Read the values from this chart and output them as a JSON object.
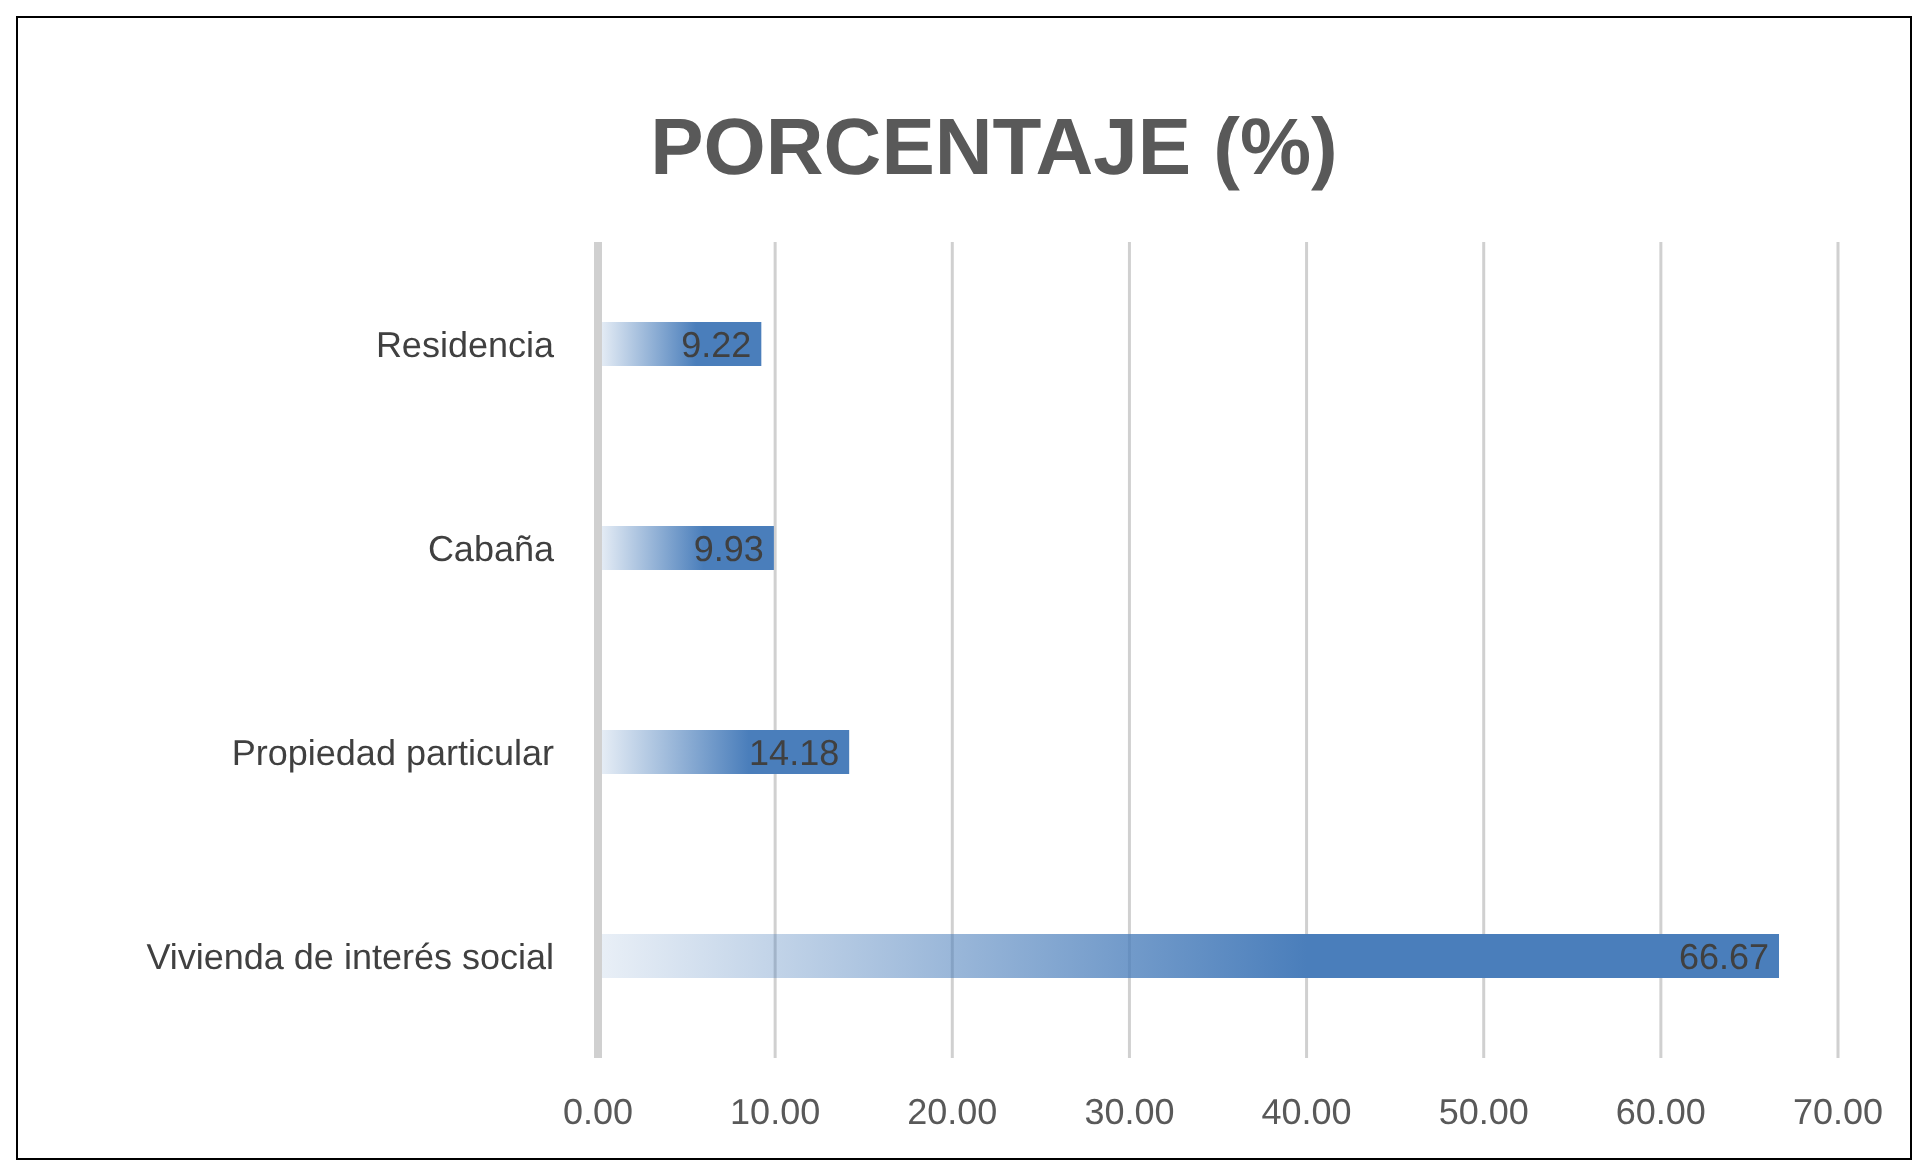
{
  "chart_data": {
    "type": "bar",
    "title": "PORCENTAJE (%)",
    "orientation": "horizontal",
    "categories": [
      "Residencia",
      "Cabaña",
      "Propiedad particular",
      "Vivienda de interés social"
    ],
    "values": [
      9.22,
      9.93,
      14.18,
      66.67
    ],
    "color": "#4a7ebb",
    "xlim": [
      0,
      70
    ],
    "xticks": [
      {
        "value": 0,
        "label": "0.00"
      },
      {
        "value": 10,
        "label": "10.00"
      },
      {
        "value": 20,
        "label": "20.00"
      },
      {
        "value": 30,
        "label": "30.00"
      },
      {
        "value": 40,
        "label": "40.00"
      },
      {
        "value": 50,
        "label": "50.00"
      },
      {
        "value": 60,
        "label": "60.00"
      },
      {
        "value": 70,
        "label": "70.00"
      }
    ],
    "grid": "x",
    "legend": false,
    "data_labels": true
  }
}
